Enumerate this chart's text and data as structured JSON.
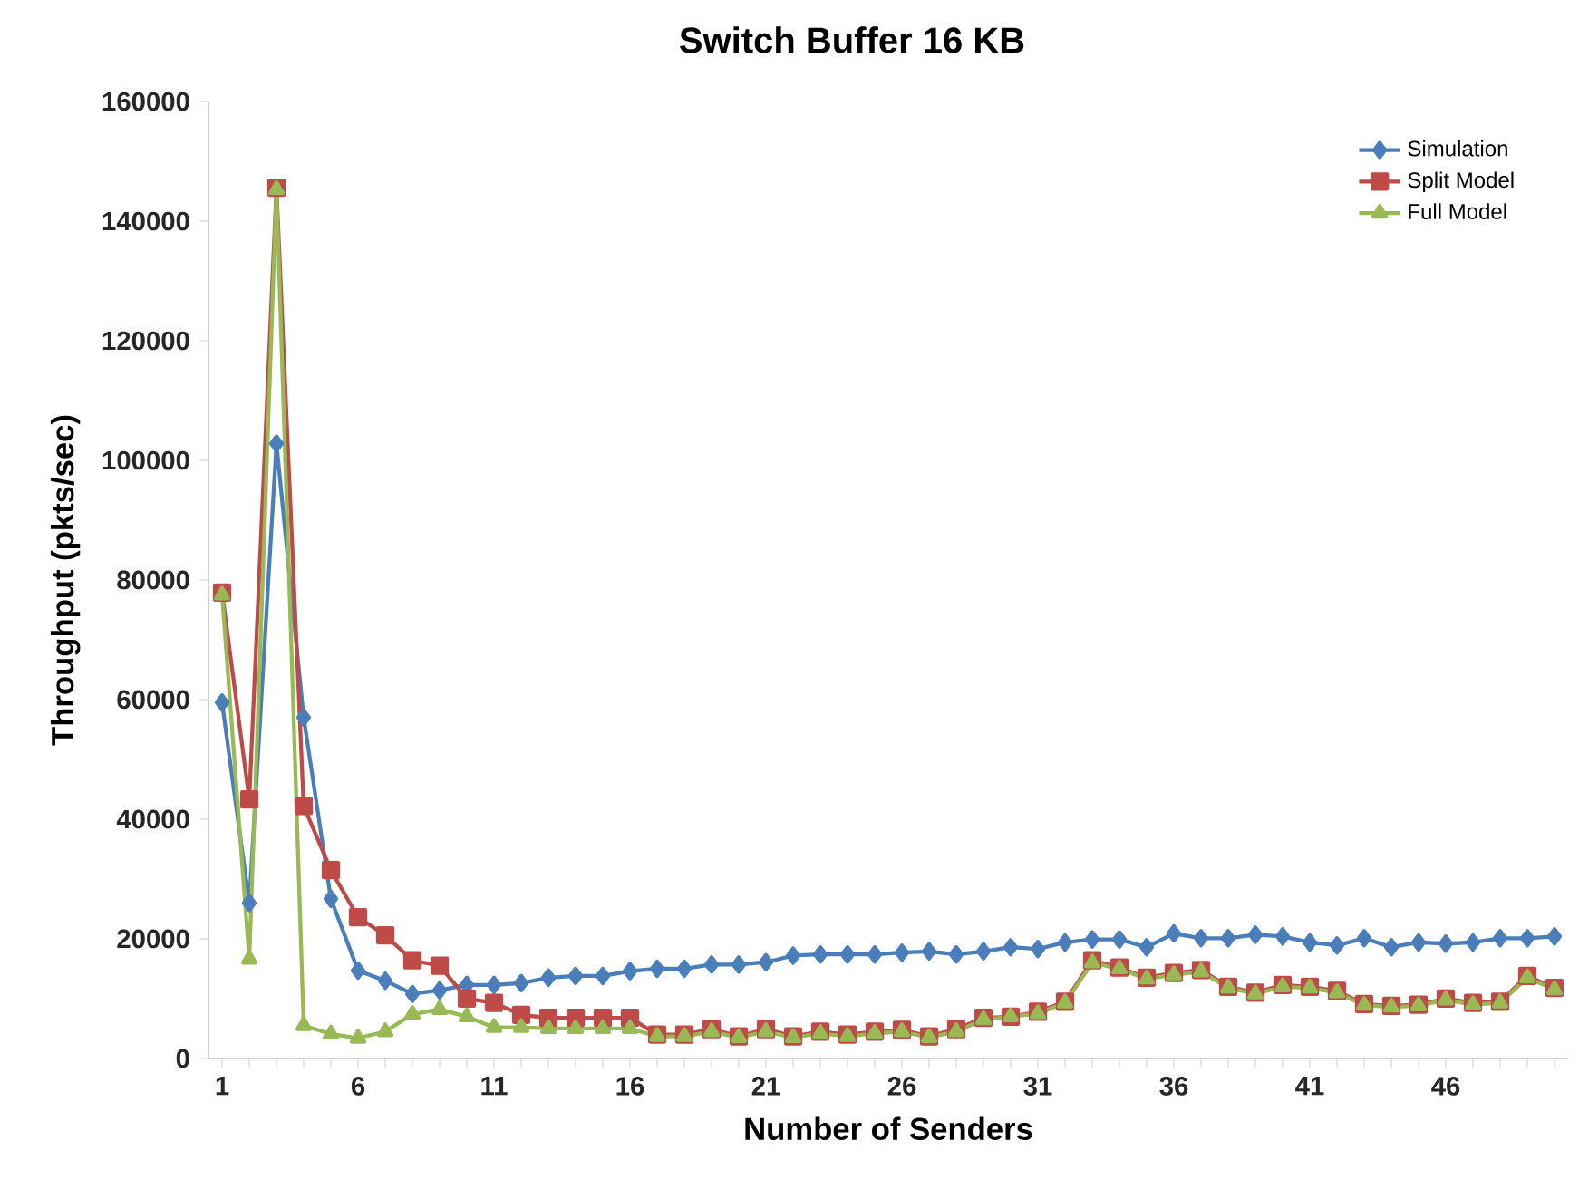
{
  "chart_data": {
    "type": "line",
    "title": "Switch Buffer 16 KB",
    "xlabel": "Number of Senders",
    "ylabel": "Throughput (pkts/sec)",
    "categories": [
      "1",
      null,
      null,
      null,
      null,
      "6",
      null,
      null,
      null,
      null,
      "11",
      null,
      null,
      null,
      null,
      "16",
      null,
      null,
      null,
      null,
      "21",
      null,
      null,
      null,
      null,
      "26",
      null,
      null,
      null,
      null,
      "31",
      null,
      null,
      null,
      null,
      "36",
      null,
      null,
      null,
      null,
      "41",
      null,
      null,
      null,
      null,
      "46",
      null,
      null,
      null,
      null
    ],
    "ylim": [
      0,
      160000
    ],
    "yticks": [
      0,
      20000,
      40000,
      60000,
      80000,
      100000,
      120000,
      140000,
      160000
    ],
    "legend": "top right",
    "grid": false,
    "series": [
      {
        "name": "Simulation",
        "color": "#4a7ebb",
        "marker": "diamond",
        "values": [
          59500,
          26000,
          102800,
          57000,
          26700,
          14700,
          13000,
          10800,
          11400,
          12300,
          12300,
          12600,
          13500,
          13800,
          13800,
          14600,
          15000,
          15000,
          15700,
          15700,
          16100,
          17200,
          17400,
          17400,
          17400,
          17700,
          17900,
          17400,
          17900,
          18600,
          18300,
          19400,
          19900,
          19900,
          18600,
          20900,
          20100,
          20100,
          20700,
          20400,
          19400,
          18900,
          20100,
          18600,
          19400,
          19200,
          19400,
          20100,
          20100,
          20400
        ]
      },
      {
        "name": "Split Model",
        "color": "#be4b48",
        "marker": "square",
        "values": [
          77900,
          43300,
          145600,
          42200,
          31500,
          23600,
          20600,
          16400,
          15500,
          10000,
          9300,
          7300,
          6800,
          6800,
          6800,
          6800,
          4000,
          4000,
          4900,
          3700,
          4900,
          3700,
          4500,
          4000,
          4500,
          4800,
          3700,
          4900,
          6800,
          7000,
          7800,
          9500,
          16400,
          15200,
          13500,
          14300,
          14800,
          12000,
          11000,
          12300,
          12000,
          11300,
          9100,
          8800,
          9000,
          10000,
          9300,
          9500,
          13800,
          11800
        ]
      },
      {
        "name": "Full Model",
        "color": "#98b954",
        "marker": "triangle",
        "values": [
          77500,
          16600,
          145300,
          5500,
          4100,
          3400,
          4500,
          7400,
          8200,
          7000,
          5200,
          5200,
          5000,
          5000,
          5000,
          5000,
          3700,
          3700,
          4500,
          3500,
          4500,
          3500,
          4200,
          3700,
          4200,
          4500,
          3500,
          4500,
          6500,
          7000,
          7500,
          9300,
          16000,
          15000,
          13300,
          14000,
          14500,
          11800,
          10800,
          12000,
          11800,
          11000,
          8900,
          8600,
          8800,
          9800,
          9000,
          9300,
          13500,
          11500
        ]
      }
    ]
  }
}
